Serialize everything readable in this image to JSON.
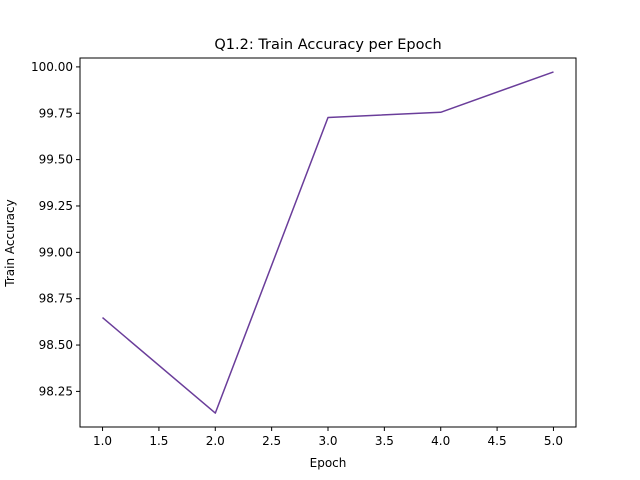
{
  "chart_data": {
    "type": "line",
    "title": "Q1.2: Train Accuracy per Epoch",
    "xlabel": "Epoch",
    "ylabel": "Train Accuracy",
    "x": [
      1.0,
      2.0,
      3.0,
      4.0,
      5.0
    ],
    "series": [
      {
        "values": [
          98.648,
          98.133,
          99.727,
          99.755,
          99.973
        ],
        "color": "#6a3d9a"
      }
    ],
    "xlim": [
      0.8,
      5.2
    ],
    "ylim": [
      98.058,
      100.048
    ],
    "xticks": [
      1.0,
      1.5,
      2.0,
      2.5,
      3.0,
      3.5,
      4.0,
      4.5,
      5.0
    ],
    "xtick_labels": [
      "1.0",
      "1.5",
      "2.0",
      "2.5",
      "3.0",
      "3.5",
      "4.0",
      "4.5",
      "5.0"
    ],
    "yticks": [
      98.25,
      98.5,
      98.75,
      99.0,
      99.25,
      99.5,
      99.75,
      100.0
    ],
    "ytick_labels": [
      "98.25",
      "98.50",
      "98.75",
      "99.00",
      "99.25",
      "99.50",
      "99.75",
      "100.00"
    ],
    "grid": false,
    "legend": false
  }
}
